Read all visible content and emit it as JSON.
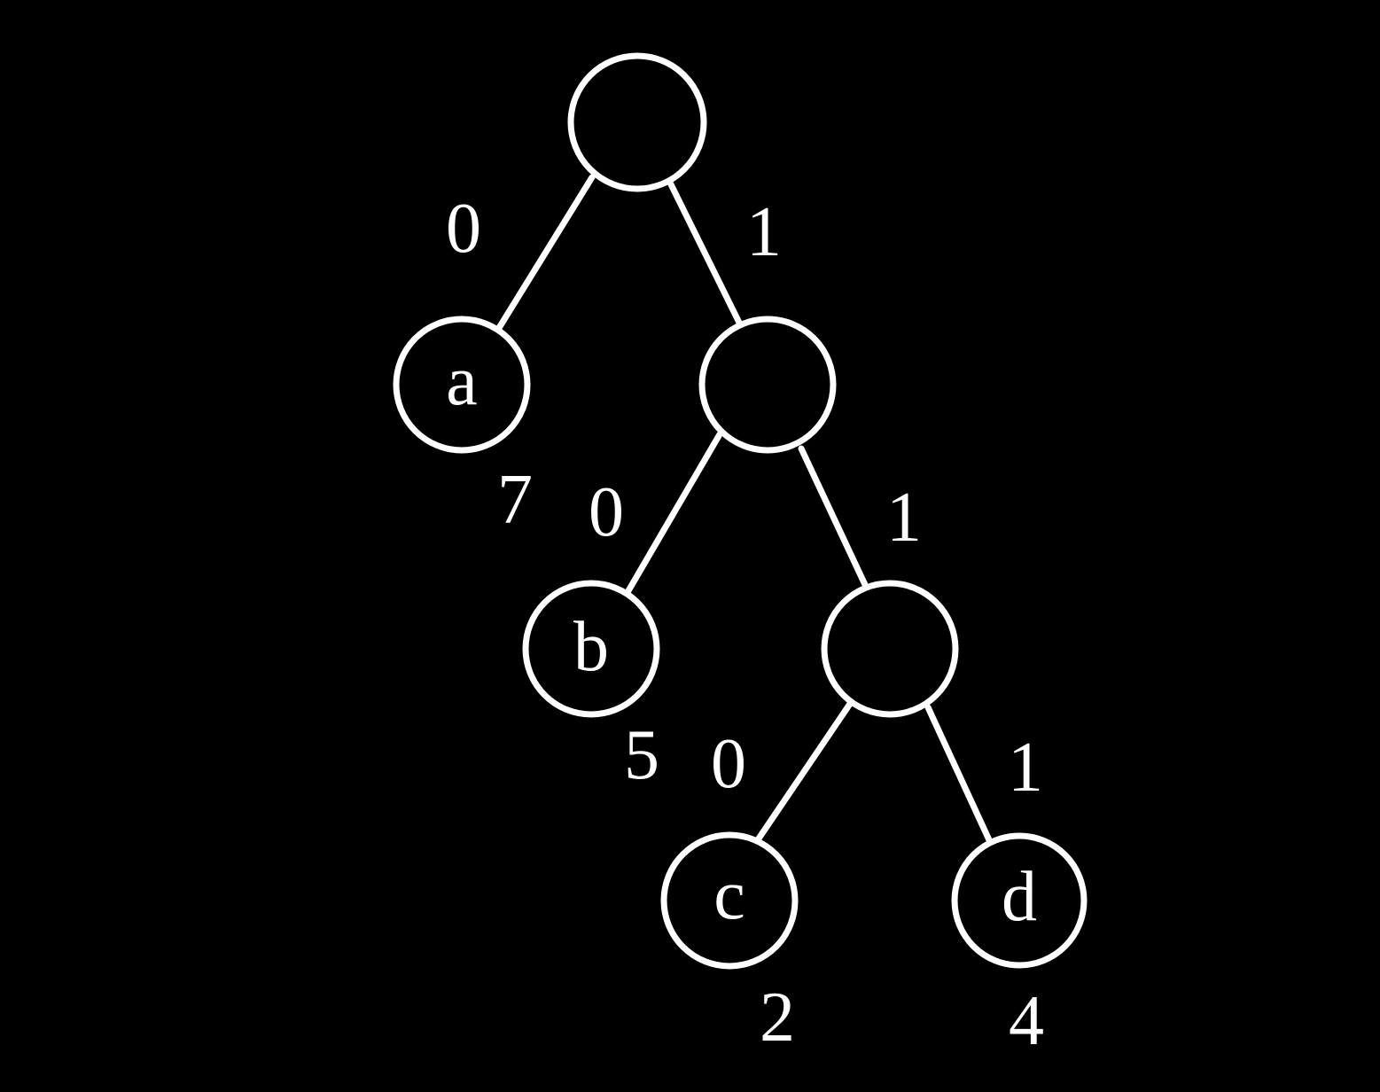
{
  "colors": {
    "background": "#000000",
    "foreground": "#ffffff"
  },
  "tree": {
    "type": "huffman-code-tree",
    "nodes": {
      "root": {
        "letter": ""
      },
      "n1": {
        "letter": ""
      },
      "n2": {
        "letter": ""
      },
      "a": {
        "letter": "a",
        "weight": "7"
      },
      "b": {
        "letter": "b",
        "weight": "5"
      },
      "c": {
        "letter": "c",
        "weight": "2"
      },
      "d": {
        "letter": "d",
        "weight": "4"
      }
    },
    "edges": {
      "root_a": {
        "bit": "0"
      },
      "root_n1": {
        "bit": "1"
      },
      "n1_b": {
        "bit": "0"
      },
      "n1_n2": {
        "bit": "1"
      },
      "n2_c": {
        "bit": "0"
      },
      "n2_d": {
        "bit": "1"
      }
    }
  }
}
